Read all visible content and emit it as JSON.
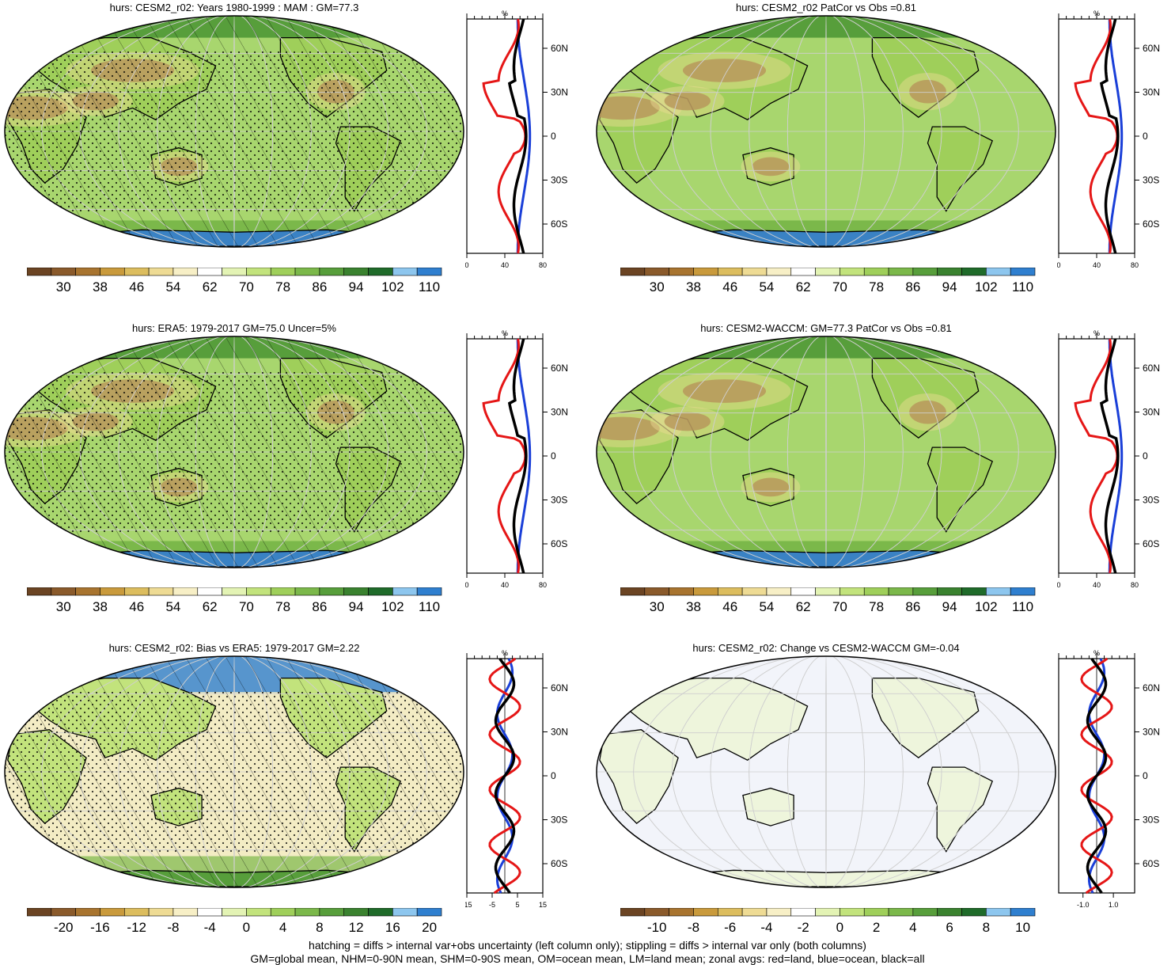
{
  "panels": [
    {
      "title": "hurs: CESM2_r02: Years 1980-1999 : MAM : GM=77.3",
      "map_palette": "abs",
      "hatch": true,
      "stipple": true,
      "profile": {
        "xticks": [
          "0",
          "40",
          "80"
        ],
        "yticks": [
          "60N",
          "30N",
          "0",
          "30S",
          "60S"
        ],
        "unit": "%"
      },
      "colorbar": {
        "palette": "abs",
        "labels": [
          "30",
          "38",
          "46",
          "54",
          "62",
          "70",
          "78",
          "86",
          "94",
          "102",
          "110"
        ]
      }
    },
    {
      "title": "hurs: CESM2_r02 PatCor vs Obs =0.81",
      "map_palette": "abs",
      "hatch": false,
      "stipple": false,
      "profile": {
        "xticks": [
          "0",
          "40",
          "80"
        ],
        "yticks": [
          "60N",
          "30N",
          "0",
          "30S",
          "60S"
        ],
        "unit": "%"
      },
      "colorbar": {
        "palette": "abs",
        "labels": [
          "30",
          "38",
          "46",
          "54",
          "62",
          "70",
          "78",
          "86",
          "94",
          "102",
          "110"
        ]
      }
    },
    {
      "title": "hurs: ERA5: 1979-2017 GM=75.0 Uncer=5%",
      "map_palette": "abs",
      "hatch": true,
      "stipple": true,
      "profile": {
        "xticks": [
          "0",
          "40",
          "80"
        ],
        "yticks": [
          "60N",
          "30N",
          "0",
          "30S",
          "60S"
        ],
        "unit": "%"
      },
      "colorbar": {
        "palette": "abs",
        "labels": [
          "30",
          "38",
          "46",
          "54",
          "62",
          "70",
          "78",
          "86",
          "94",
          "102",
          "110"
        ]
      }
    },
    {
      "title": "hurs: CESM2-WACCM: GM=77.3 PatCor vs Obs =0.81",
      "map_palette": "abs",
      "hatch": false,
      "stipple": false,
      "profile": {
        "xticks": [
          "0",
          "40",
          "80"
        ],
        "yticks": [
          "60N",
          "30N",
          "0",
          "30S",
          "60S"
        ],
        "unit": "%"
      },
      "colorbar": {
        "palette": "abs",
        "labels": [
          "30",
          "38",
          "46",
          "54",
          "62",
          "70",
          "78",
          "86",
          "94",
          "102",
          "110"
        ]
      }
    },
    {
      "title": "hurs: CESM2_r02: Bias vs ERA5: 1979-2017 GM=2.22",
      "map_palette": "bias",
      "hatch": true,
      "stipple": true,
      "profile": {
        "xticks": [
          "-15",
          "-5",
          "5",
          "15"
        ],
        "yticks": [
          "60N",
          "30N",
          "0",
          "30S",
          "60S"
        ],
        "unit": "%"
      },
      "colorbar": {
        "palette": "diff",
        "labels": [
          "-20",
          "-16",
          "-12",
          "-8",
          "-4",
          "0",
          "4",
          "8",
          "12",
          "16",
          "20"
        ]
      }
    },
    {
      "title": "hurs: CESM2_r02: Change vs CESM2-WACCM GM=-0.04",
      "map_palette": "change",
      "hatch": false,
      "stipple": false,
      "profile": {
        "xticks": [
          "-1.0",
          "1.0"
        ],
        "yticks": [
          "60N",
          "30N",
          "0",
          "30S",
          "60S"
        ],
        "unit": "%"
      },
      "colorbar": {
        "palette": "diff",
        "labels": [
          "-10",
          "-8",
          "-6",
          "-4",
          "-2",
          "0",
          "2",
          "4",
          "6",
          "8",
          "10"
        ]
      }
    }
  ],
  "palettes": {
    "abs": [
      "#6b4423",
      "#8a5a2b",
      "#a8742f",
      "#c99a3c",
      "#dcbd5e",
      "#eedb94",
      "#f7efc6",
      "#ffffff",
      "#e3f3b4",
      "#c2e37c",
      "#9fcf5a",
      "#7bb84a",
      "#579e3b",
      "#3a822f",
      "#1f6b2a",
      "#8dc6ee",
      "#2f7fcf"
    ],
    "diff": [
      "#6b4423",
      "#8a5a2b",
      "#a8742f",
      "#c99a3c",
      "#dcbd5e",
      "#eedb94",
      "#f7efc6",
      "#ffffff",
      "#e3f3b4",
      "#c2e37c",
      "#9fcf5a",
      "#7bb84a",
      "#579e3b",
      "#3a822f",
      "#1f6b2a",
      "#8dc6ee",
      "#2f7fcf"
    ]
  },
  "footer": {
    "line1": "hatching = diffs > internal var+obs uncertainty (left column only); stippling = diffs > internal var only (both columns)",
    "line2": "GM=global mean, NHM=0-90N mean, SHM=0-90S mean, OM=ocean mean, LM=land mean; zonal avgs: red=land, blue=ocean, black=all"
  }
}
